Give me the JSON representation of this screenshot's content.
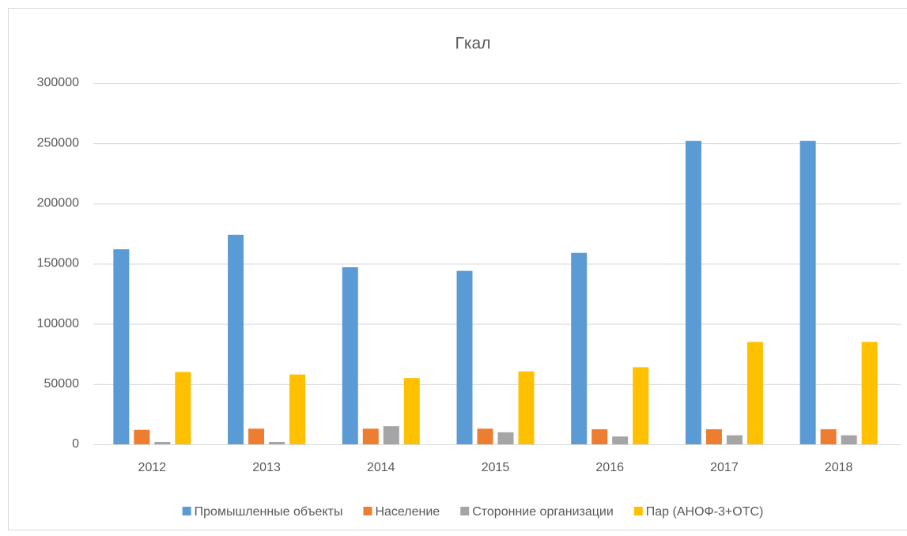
{
  "chart_data": {
    "type": "bar",
    "title": "Гкал",
    "categories": [
      "2012",
      "2013",
      "2014",
      "2015",
      "2016",
      "2017",
      "2018"
    ],
    "series": [
      {
        "name": "Промышленные объекты",
        "color": "#5b9bd5",
        "values": [
          162000,
          174000,
          147000,
          144000,
          159000,
          252000,
          252000
        ]
      },
      {
        "name": "Население",
        "color": "#ed7d31",
        "values": [
          12000,
          13000,
          13000,
          13000,
          12500,
          12500,
          12500
        ]
      },
      {
        "name": "Сторонние организации",
        "color": "#a5a5a5",
        "values": [
          2000,
          2000,
          15000,
          10000,
          6500,
          7500,
          7500
        ]
      },
      {
        "name": "Пар (АНОФ-3+ОТС)",
        "color": "#ffc000",
        "values": [
          60000,
          58000,
          55000,
          60500,
          64000,
          85000,
          85000
        ]
      }
    ],
    "ylim": [
      0,
      300000
    ],
    "yticks": [
      0,
      50000,
      100000,
      150000,
      200000,
      250000,
      300000
    ],
    "grid": true,
    "legend": "bottom"
  }
}
